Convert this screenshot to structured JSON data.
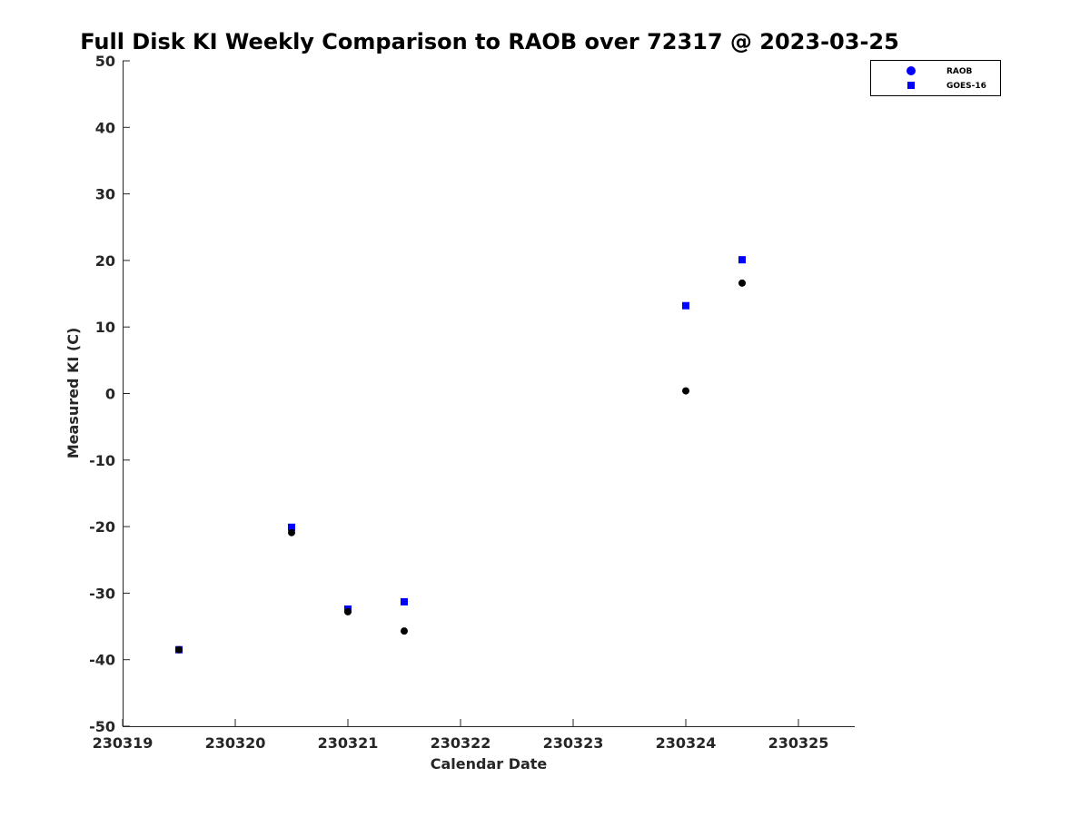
{
  "chart_data": {
    "type": "scatter",
    "title": "Full Disk KI Weekly Comparison to RAOB over 72317 @ 2023-03-25",
    "xlabel": "Calendar Date",
    "ylabel": "Measured KI (C)",
    "xlim": [
      230319,
      230325.5
    ],
    "ylim": [
      -50,
      50
    ],
    "xticks": [
      "230319",
      "230320",
      "230321",
      "230322",
      "230323",
      "230324",
      "230325"
    ],
    "yticks": [
      "50",
      "40",
      "30",
      "20",
      "10",
      "0",
      "-10",
      "-20",
      "-30",
      "-40",
      "-50"
    ],
    "grid": false,
    "legend_position": "top-right",
    "series": [
      {
        "name": "RAOB",
        "marker": "circle",
        "color": "#000000",
        "legend_color": "#0000ff",
        "x": [
          230319.5,
          230320.5,
          230321,
          230321.5,
          230324,
          230324.5
        ],
        "y": [
          -38.5,
          -20.9,
          -32.8,
          -35.7,
          0.4,
          16.6
        ]
      },
      {
        "name": "GOES-16",
        "marker": "square",
        "color": "#0000ff",
        "x": [
          230319.5,
          230320.5,
          230321,
          230321.5,
          230324,
          230324.5
        ],
        "y": [
          -38.5,
          -20.1,
          -32.4,
          -31.3,
          13.2,
          20.1
        ]
      }
    ]
  }
}
